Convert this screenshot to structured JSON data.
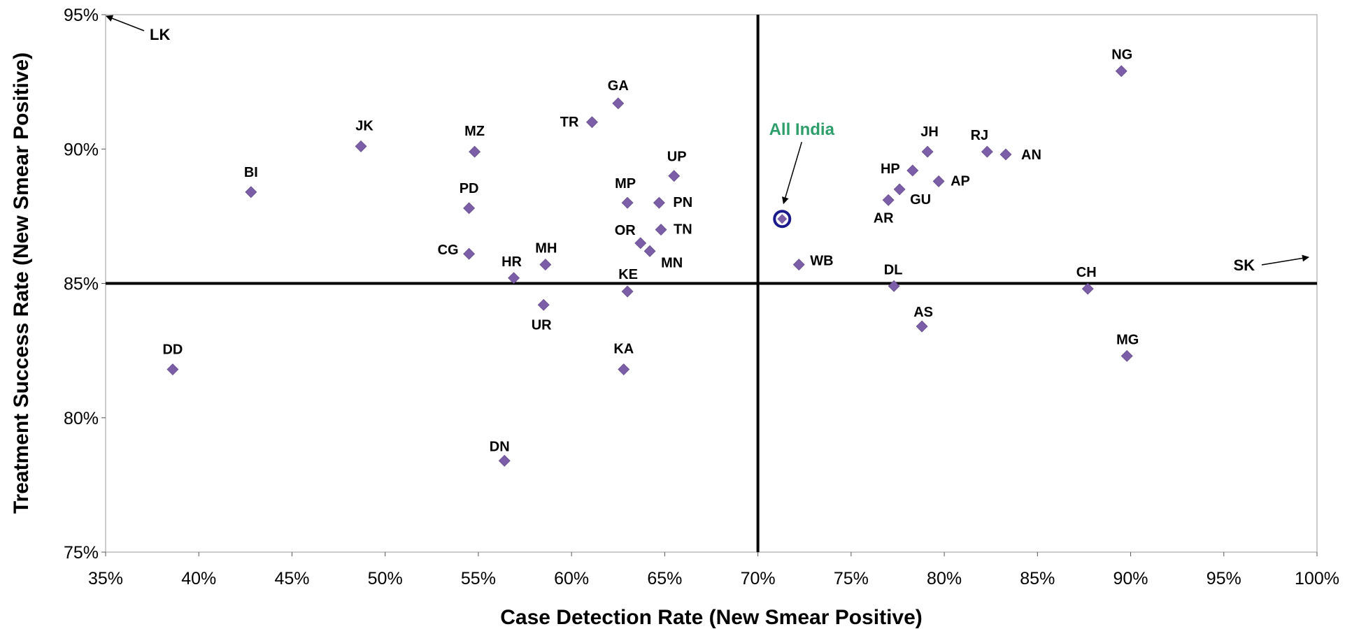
{
  "chart_data": {
    "type": "scatter",
    "xlabel": "Case Detection Rate (New Smear Positive)",
    "ylabel": "Treatment Success Rate (New Smear Positive)",
    "xlim": [
      35,
      100
    ],
    "ylim": [
      75,
      95
    ],
    "x_ticks": [
      "35%",
      "40%",
      "45%",
      "50%",
      "55%",
      "60%",
      "65%",
      "70%",
      "75%",
      "80%",
      "85%",
      "90%",
      "95%",
      "100%"
    ],
    "y_ticks": [
      "75%",
      "80%",
      "85%",
      "90%",
      "95%"
    ],
    "reference_lines": {
      "x": 70,
      "y": 85
    },
    "marker_color": "#7b5ea7",
    "highlight_color": "#2e9e6b",
    "highlight_ring_color": "#1a1a8c",
    "points": [
      {
        "label": "DD",
        "x": 38.6,
        "y": 81.8
      },
      {
        "label": "BI",
        "x": 42.8,
        "y": 88.4
      },
      {
        "label": "JK",
        "x": 48.7,
        "y": 90.1
      },
      {
        "label": "MZ",
        "x": 54.8,
        "y": 89.9
      },
      {
        "label": "PD",
        "x": 54.5,
        "y": 87.8
      },
      {
        "label": "CG",
        "x": 54.5,
        "y": 86.1
      },
      {
        "label": "DN",
        "x": 56.4,
        "y": 78.4
      },
      {
        "label": "HR",
        "x": 56.9,
        "y": 85.2
      },
      {
        "label": "UR",
        "x": 58.5,
        "y": 84.2
      },
      {
        "label": "MH",
        "x": 58.6,
        "y": 85.7
      },
      {
        "label": "TR",
        "x": 61.1,
        "y": 91.0
      },
      {
        "label": "GA",
        "x": 62.5,
        "y": 91.7
      },
      {
        "label": "KA",
        "x": 62.8,
        "y": 81.8
      },
      {
        "label": "MP",
        "x": 63.0,
        "y": 88.0
      },
      {
        "label": "KE",
        "x": 63.0,
        "y": 84.7
      },
      {
        "label": "OR",
        "x": 63.7,
        "y": 86.5
      },
      {
        "label": "MN",
        "x": 64.2,
        "y": 86.2
      },
      {
        "label": "PN",
        "x": 64.7,
        "y": 88.0
      },
      {
        "label": "TN",
        "x": 64.8,
        "y": 87.0
      },
      {
        "label": "UP",
        "x": 65.5,
        "y": 89.0
      },
      {
        "label": "WB",
        "x": 72.2,
        "y": 85.7
      },
      {
        "label": "AR",
        "x": 77.0,
        "y": 88.1
      },
      {
        "label": "DL",
        "x": 77.3,
        "y": 84.9
      },
      {
        "label": "GU",
        "x": 77.6,
        "y": 88.5
      },
      {
        "label": "HP",
        "x": 78.3,
        "y": 89.2
      },
      {
        "label": "AS",
        "x": 78.8,
        "y": 83.4
      },
      {
        "label": "JH",
        "x": 79.1,
        "y": 89.9
      },
      {
        "label": "AP",
        "x": 79.7,
        "y": 88.8
      },
      {
        "label": "RJ",
        "x": 82.3,
        "y": 89.9
      },
      {
        "label": "AN",
        "x": 83.3,
        "y": 89.8
      },
      {
        "label": "CH",
        "x": 87.7,
        "y": 84.8
      },
      {
        "label": "NG",
        "x": 89.5,
        "y": 92.9
      },
      {
        "label": "MG",
        "x": 89.8,
        "y": 82.3
      }
    ],
    "highlight": {
      "label": "All India",
      "x": 71.3,
      "y": 87.4
    },
    "offscale": [
      {
        "label": "LK",
        "direction": "left"
      },
      {
        "label": "SK",
        "direction": "right"
      }
    ]
  }
}
